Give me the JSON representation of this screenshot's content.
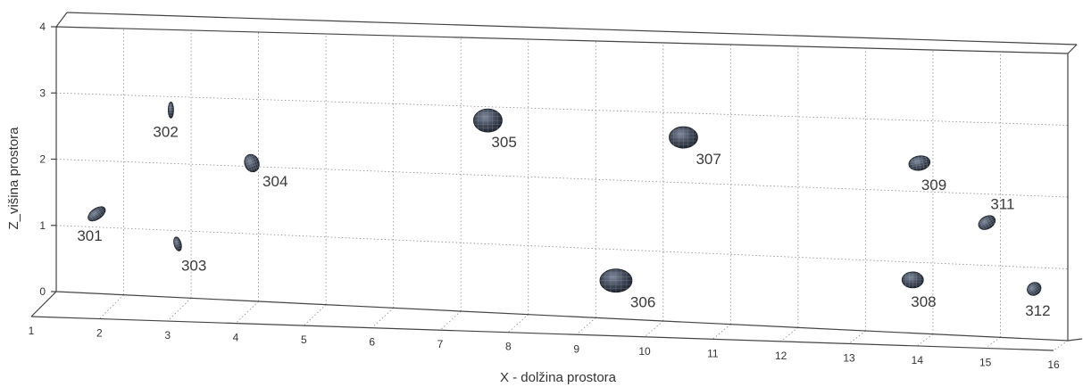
{
  "chart_data": {
    "type": "scatter",
    "title": "",
    "xlabel": "X - dolžina prostora",
    "zlabel": "Z_višina prostora",
    "x_ticks": [
      "1",
      "2",
      "3",
      "4",
      "5",
      "6",
      "7",
      "8",
      "9",
      "10",
      "11",
      "12",
      "13",
      "14",
      "15",
      "16"
    ],
    "z_ticks": [
      "0",
      "1",
      "2",
      "3",
      "4"
    ],
    "xlim": [
      1,
      16
    ],
    "zlim": [
      0,
      4
    ],
    "grid": true,
    "marker": "ellipsoid",
    "marker_color": "#3a4150",
    "points": [
      {
        "label": "301",
        "x": 1.6,
        "z": 1.2
      },
      {
        "label": "302",
        "x": 2.7,
        "z": 2.8
      },
      {
        "label": "303",
        "x": 2.8,
        "z": 0.8
      },
      {
        "label": "304",
        "x": 3.9,
        "z": 2.05
      },
      {
        "label": "305",
        "x": 7.4,
        "z": 2.8
      },
      {
        "label": "306",
        "x": 9.3,
        "z": 0.55
      },
      {
        "label": "307",
        "x": 10.3,
        "z": 2.65
      },
      {
        "label": "308",
        "x": 13.7,
        "z": 0.75
      },
      {
        "label": "309",
        "x": 13.8,
        "z": 2.4
      },
      {
        "label": "311",
        "x": 14.8,
        "z": 1.6
      },
      {
        "label": "312",
        "x": 15.5,
        "z": 0.7
      }
    ]
  }
}
